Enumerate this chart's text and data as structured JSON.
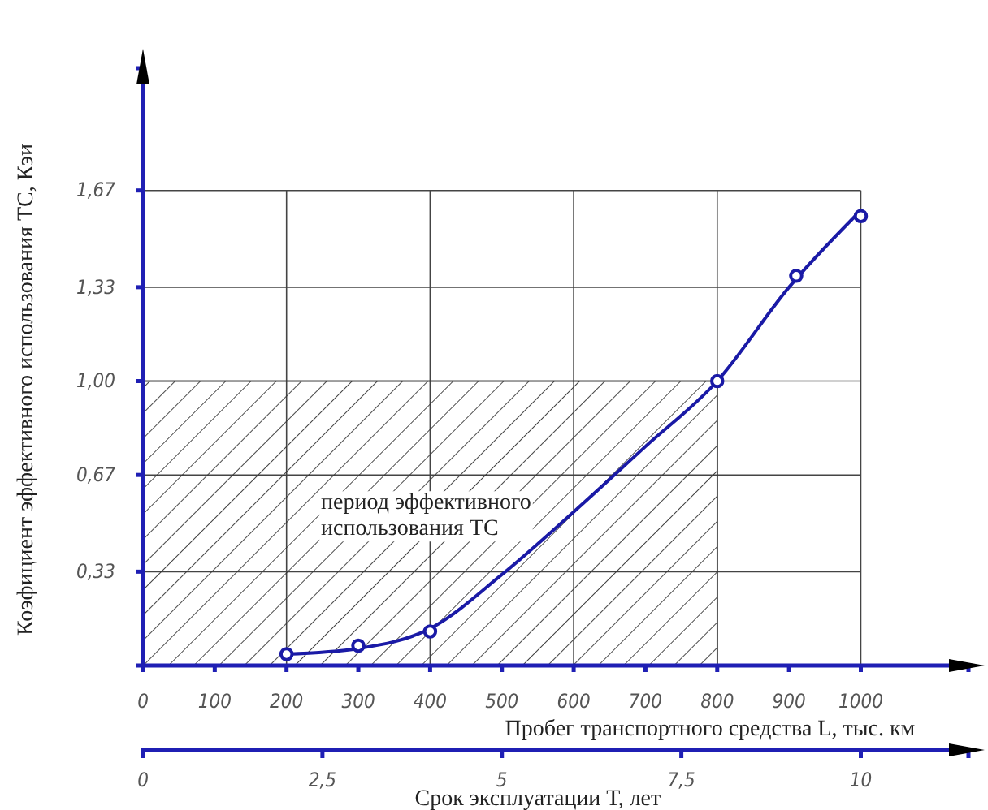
{
  "chart_data": {
    "type": "line",
    "xlabel": "Пробег транспортного средства L, тыс. км",
    "ylabel": "Коэфициент эффективного использования ТС, Кэи",
    "x2label": "Срок эксплуатации Т, лет",
    "xlim": [
      0,
      1150
    ],
    "xticks": [
      0,
      100,
      200,
      300,
      400,
      500,
      600,
      700,
      800,
      900,
      1000
    ],
    "ylim": [
      0,
      2.1
    ],
    "yticks": [
      {
        "value": 0.33,
        "label": "0,33"
      },
      {
        "value": 0.67,
        "label": "0,67"
      },
      {
        "value": 1.0,
        "label": "1,00"
      },
      {
        "value": 1.33,
        "label": "1,33"
      },
      {
        "value": 1.67,
        "label": "1,67"
      }
    ],
    "x2lim": [
      0,
      11.5
    ],
    "x2ticks": [
      0,
      {
        "value": 2.5,
        "label": "2,5"
      },
      5,
      {
        "value": 7.5,
        "label": "7,5"
      },
      10
    ],
    "grid": true,
    "marker": "circle",
    "bands": [
      {
        "axis": "x",
        "from": 0,
        "to": 800,
        "label": "период эффективного использования ТС"
      }
    ],
    "series": [
      {
        "marker": "none",
        "color": "#1a1aa6",
        "x": [
          200,
          300,
          400,
          500,
          600,
          700,
          800,
          900,
          1000
        ],
        "values": [
          0.04,
          0.06,
          0.13,
          0.32,
          0.54,
          0.77,
          1.0,
          1.33,
          1.6
        ]
      },
      {
        "type": "scatter",
        "color": "#1a1aa6",
        "x": [
          200,
          300,
          400,
          800,
          910,
          1000
        ],
        "values": [
          0.04,
          0.07,
          0.12,
          1.0,
          1.37,
          1.58
        ]
      }
    ]
  }
}
